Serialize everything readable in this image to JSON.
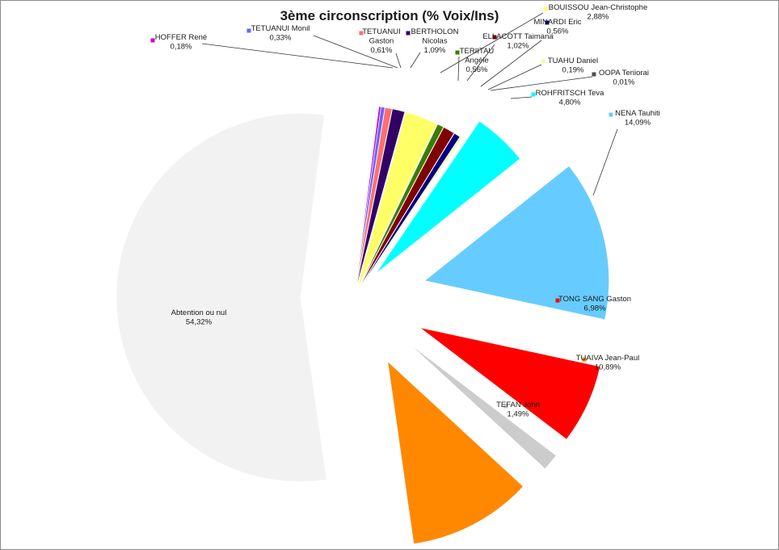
{
  "chart_data": {
    "type": "pie",
    "title": "3ème circonscription (% Voix/Ins)",
    "exploded": true,
    "slices": [
      {
        "name": "HOFFER René",
        "value": 0.18,
        "label": "0,18%",
        "color": "#cc00cc"
      },
      {
        "name": "TETUANUI Monil",
        "value": 0.33,
        "label": "0,33%",
        "color": "#6666ff"
      },
      {
        "name": "TETUANUI Gaston",
        "value": 0.61,
        "label": "0,61%",
        "color": "#ff6f6f"
      },
      {
        "name": "BERTHOLON Nicolas",
        "value": 1.09,
        "label": "1,09%",
        "color": "#330066"
      },
      {
        "name": "BOUISSOU Jean-Christophe",
        "value": 2.88,
        "label": "2,88%",
        "color": "#ffff66"
      },
      {
        "name": "TERIITAU Angèle",
        "value": 0.56,
        "label": "0,56%",
        "color": "#3a7d00"
      },
      {
        "name": "ELLACOTT Taimana",
        "value": 1.02,
        "label": "1,02%",
        "color": "#800000"
      },
      {
        "name": "MINARDI Eric",
        "value": 0.56,
        "label": "0,56%",
        "color": "#000080"
      },
      {
        "name": "TUAHU Daniel",
        "value": 0.19,
        "label": "0,19%",
        "color": "#eeff99"
      },
      {
        "name": "OOPA Teriiorai",
        "value": 0.01,
        "label": "0,01%",
        "color": "#4d4d4d"
      },
      {
        "name": "ROHFRITSCH Teva",
        "value": 4.8,
        "label": "4,80%",
        "color": "#00ffff"
      },
      {
        "name": "NENA Tauhiti",
        "value": 14.09,
        "label": "14,09%",
        "color": "#66ccff"
      },
      {
        "name": "TONG SANG Gaston",
        "value": 6.98,
        "label": "6,98%",
        "color": "#ff0000"
      },
      {
        "name": "TEFAN John",
        "value": 1.49,
        "label": "1,49%",
        "color": "#cccccc"
      },
      {
        "name": "TUAIVA Jean-Paul",
        "value": 10.89,
        "label": "10,89%",
        "color": "#ff8800"
      },
      {
        "name": "Abtention ou nul",
        "value": 54.32,
        "label": "54,32%",
        "color": "#f2f2f2"
      }
    ]
  }
}
